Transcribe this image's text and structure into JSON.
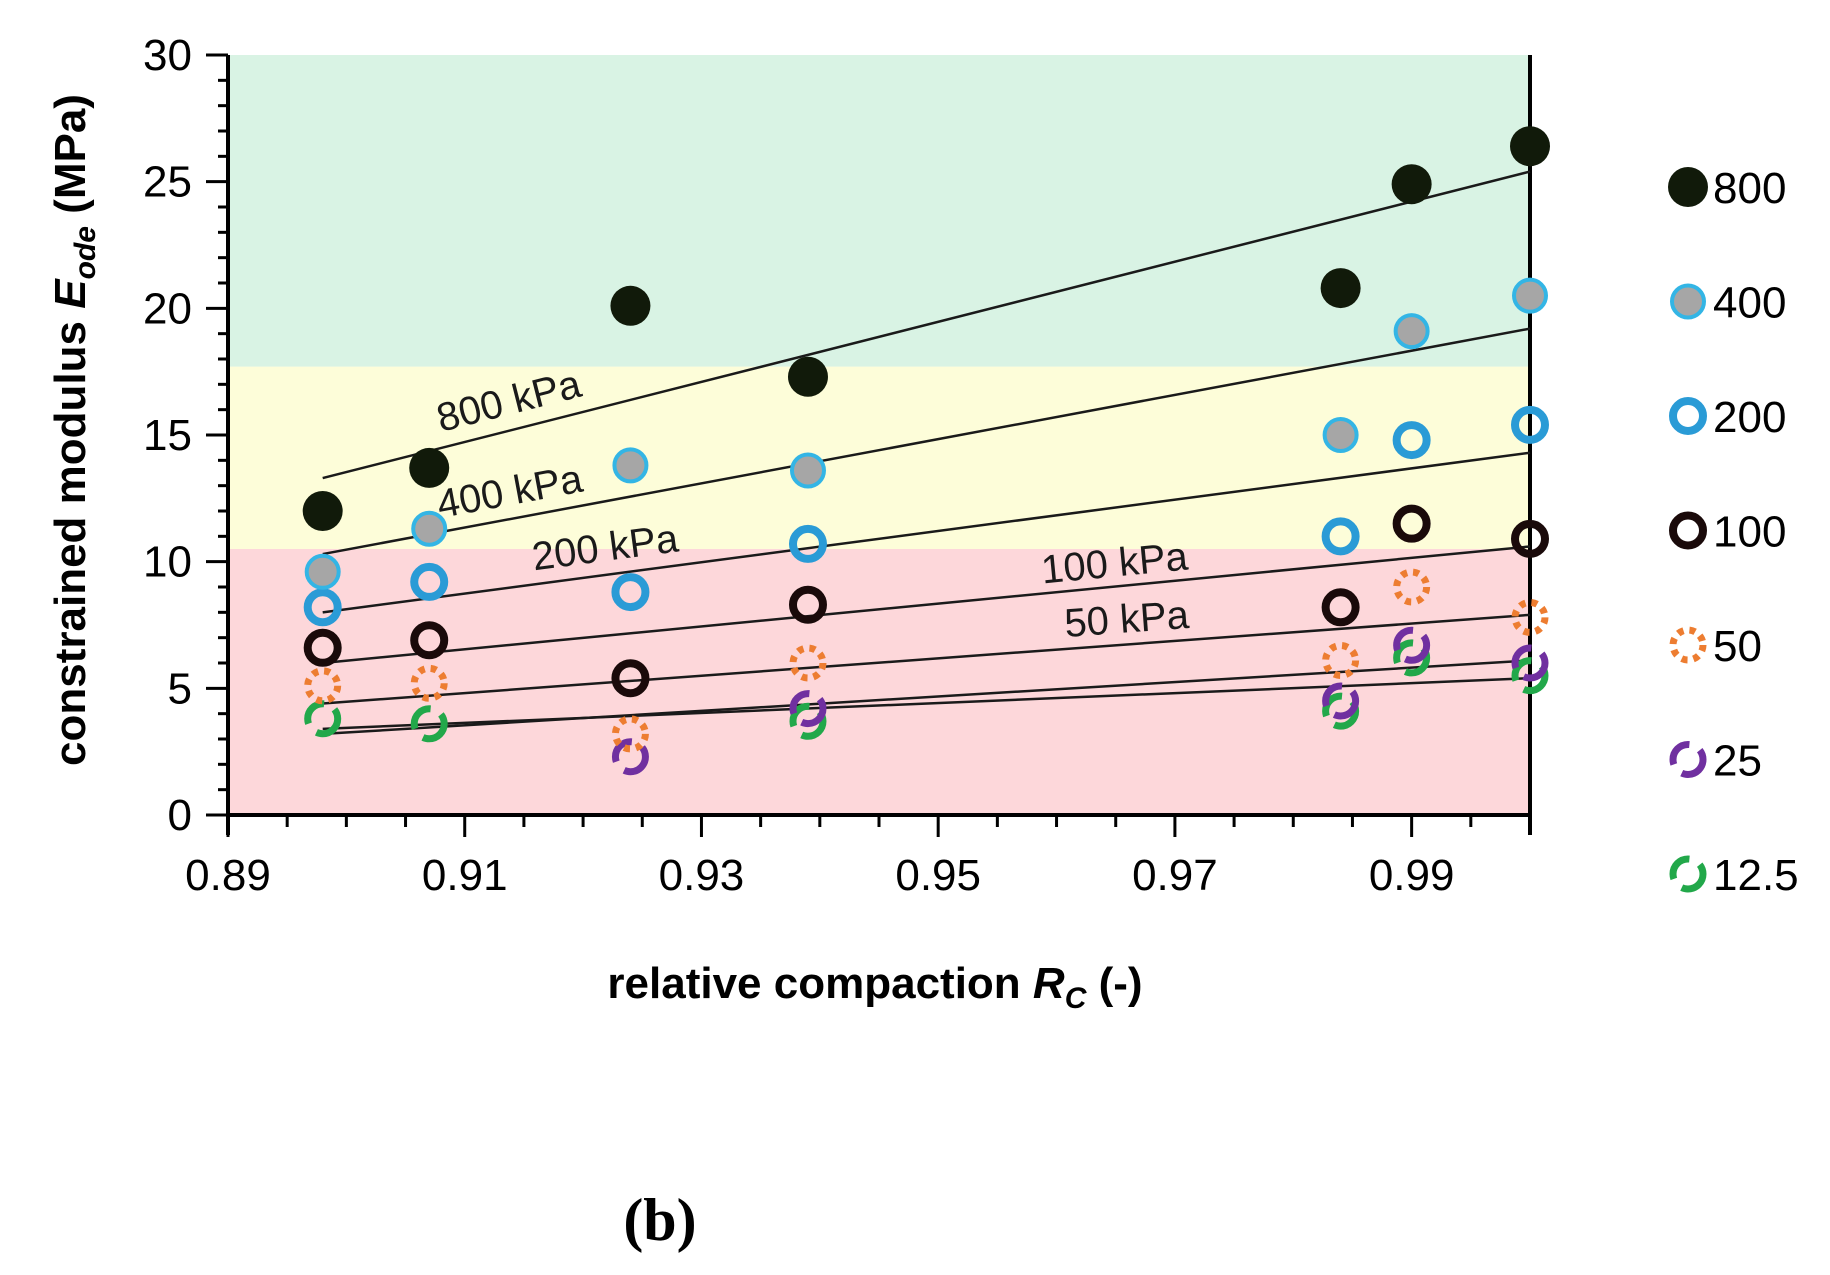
{
  "chart_data": {
    "type": "scatter",
    "title": "",
    "xlabel": "relative compaction",
    "xlabel_symbol": "R",
    "xlabel_sub": "C",
    "xlabel_unit": "(-)",
    "ylabel": "constrained modulus",
    "ylabel_symbol": "E",
    "ylabel_sub": "ode",
    "ylabel_unit": "(MPa)",
    "xlim": [
      0.89,
      1.0
    ],
    "ylim": [
      0,
      30
    ],
    "xticks": [
      "0.89",
      "0.91",
      "0.93",
      "0.95",
      "0.97",
      "0.99"
    ],
    "yticks": [
      "0",
      "5",
      "10",
      "15",
      "20",
      "25",
      "30"
    ],
    "bands": [
      {
        "from": 0,
        "to": 10.5,
        "color": "#fdd7da"
      },
      {
        "from": 10.5,
        "to": 17.7,
        "color": "#fdfdd9"
      },
      {
        "from": 17.7,
        "to": 30,
        "color": "#d9f3e4"
      }
    ],
    "x": [
      0.898,
      0.907,
      0.924,
      0.939,
      0.984,
      0.99,
      1.0
    ],
    "series": [
      {
        "name": "12.5",
        "style": "dashed-ring",
        "stroke": "#22a84a",
        "fill": "none",
        "values": [
          3.8,
          3.6,
          null,
          3.7,
          4.1,
          6.2,
          5.5
        ],
        "fit": [
          3.4,
          5.4
        ]
      },
      {
        "name": "25",
        "style": "dashed-ring",
        "stroke": "#7030a0",
        "fill": "none",
        "values": [
          null,
          null,
          2.3,
          4.2,
          4.5,
          6.7,
          6.0
        ],
        "fit": [
          3.2,
          6.1
        ]
      },
      {
        "name": "50",
        "style": "dotted-ring",
        "stroke": "#ed7d31",
        "fill": "none",
        "values": [
          5.1,
          5.2,
          3.2,
          6.0,
          6.1,
          9.0,
          7.8
        ],
        "fit": [
          4.4,
          7.9
        ],
        "fit_label": "50 kPa"
      },
      {
        "name": "100",
        "style": "ring",
        "stroke": "#1a0a0a",
        "fill": "none",
        "values": [
          6.6,
          6.9,
          5.4,
          8.3,
          8.2,
          11.5,
          10.9
        ],
        "fit": [
          6.0,
          10.6
        ],
        "fit_label": "100 kPa"
      },
      {
        "name": "200",
        "style": "ring",
        "stroke": "#2a9bd6",
        "fill": "none",
        "values": [
          8.2,
          9.2,
          8.8,
          10.7,
          11.0,
          14.8,
          15.4
        ],
        "fit": [
          8.0,
          14.3
        ],
        "fit_label": "200 kPa"
      },
      {
        "name": "400",
        "style": "filled-ring",
        "stroke": "#33b5e5",
        "fill": "#a6a6a6",
        "values": [
          9.6,
          11.3,
          13.8,
          13.6,
          15.0,
          19.1,
          20.5
        ],
        "fit": [
          10.3,
          19.2
        ],
        "fit_label": "400 kPa"
      },
      {
        "name": "800",
        "style": "filled",
        "stroke": "#111a0a",
        "fill": "#111a0a",
        "values": [
          12.0,
          13.7,
          20.1,
          17.3,
          20.8,
          24.9,
          26.4
        ],
        "fit": [
          13.3,
          25.4
        ],
        "fit_label": "800 kPa"
      }
    ],
    "fit_x": [
      0.898,
      1.0
    ],
    "legend_position": "right",
    "legend_order": [
      "800",
      "400",
      "200",
      "100",
      "50",
      "25",
      "12.5"
    ]
  },
  "panel_label": "(b)"
}
